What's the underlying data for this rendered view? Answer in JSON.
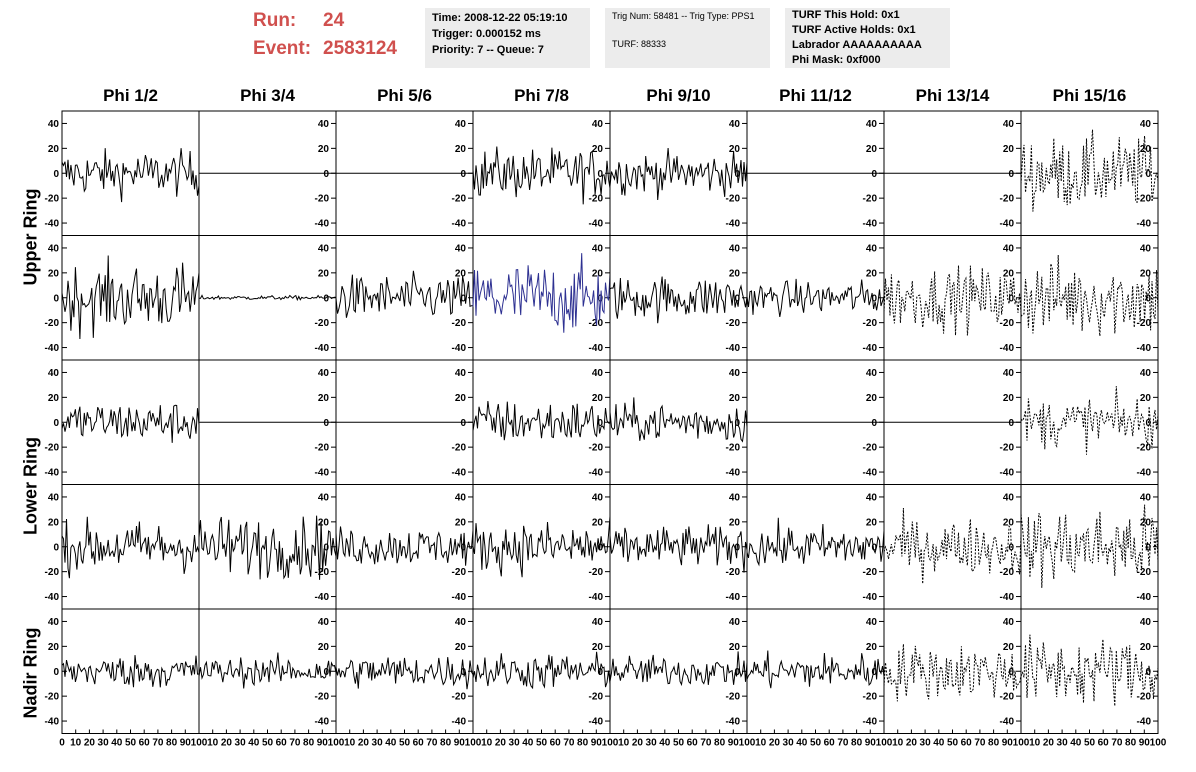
{
  "header": {
    "run_label": "Run:",
    "run_value": "24",
    "event_label": "Event:",
    "event_value": "2583124",
    "box1": [
      "Time: 2008-12-22 05:19:10",
      "Trigger: 0.000152 ms",
      "Priority: 7 -- Queue: 7"
    ],
    "box2": [
      "Trig Num: 58481 -- Trig Type: PPS1",
      "TURF: 88333"
    ],
    "box3": [
      "TURF This Hold: 0x1",
      "TURF Active Holds: 0x1",
      "Labrador AAAAAAAAAA",
      "Phi Mask: 0xf000"
    ]
  },
  "columns": [
    "Phi 1/2",
    "Phi 3/4",
    "Phi 5/6",
    "Phi 7/8",
    "Phi 9/10",
    "Phi 11/12",
    "Phi 13/14",
    "Phi 15/16"
  ],
  "rows": [
    "Upper Ring",
    "Lower Ring",
    "Nadir Ring"
  ],
  "chart_data": {
    "type": "line",
    "xlim": [
      0,
      100
    ],
    "ylim": [
      -50,
      50
    ],
    "y_ticks": [
      -40,
      -20,
      0,
      20,
      40
    ],
    "x_tick_labels_first": [
      "0",
      "10",
      "20",
      "30",
      "40",
      "50",
      "60",
      "70",
      "80",
      "90",
      "100"
    ],
    "x_tick_labels_other": [
      "10",
      "20",
      "30",
      "40",
      "50",
      "60",
      "70",
      "80",
      "90",
      "100"
    ],
    "colors": {
      "default": "#000000",
      "highlight": "#2e3192"
    },
    "panels": [
      [
        {
          "amp": 16,
          "style": "solid",
          "color": "#000000"
        },
        {
          "amp": 0,
          "style": "solid",
          "color": "#000000"
        },
        {
          "amp": 0,
          "style": "solid",
          "color": "#000000"
        },
        {
          "amp": 18,
          "style": "solid",
          "color": "#000000"
        },
        {
          "amp": 15,
          "style": "solid",
          "color": "#000000"
        },
        {
          "amp": 0,
          "style": "solid",
          "color": "#000000"
        },
        {
          "amp": 0,
          "style": "solid",
          "color": "#000000"
        },
        {
          "amp": 26,
          "style": "dashed",
          "color": "#000000"
        }
      ],
      [
        {
          "amp": 24,
          "style": "solid",
          "color": "#000000"
        },
        {
          "amp": 1.5,
          "style": "solid",
          "color": "#000000"
        },
        {
          "amp": 16,
          "style": "solid",
          "color": "#000000"
        },
        {
          "amp": 26,
          "style": "solid",
          "color": "#2e3192"
        },
        {
          "amp": 16,
          "style": "solid",
          "color": "#000000"
        },
        {
          "amp": 12,
          "style": "solid",
          "color": "#000000"
        },
        {
          "amp": 22,
          "style": "dashed",
          "color": "#000000"
        },
        {
          "amp": 28,
          "style": "dashed",
          "color": "#000000"
        }
      ],
      [
        {
          "amp": 15,
          "style": "solid",
          "color": "#000000"
        },
        {
          "amp": 0,
          "style": "solid",
          "color": "#000000"
        },
        {
          "amp": 0,
          "style": "solid",
          "color": "#000000"
        },
        {
          "amp": 16,
          "style": "solid",
          "color": "#000000"
        },
        {
          "amp": 14,
          "style": "solid",
          "color": "#000000"
        },
        {
          "amp": 0,
          "style": "solid",
          "color": "#000000"
        },
        {
          "amp": 0,
          "style": "solid",
          "color": "#000000"
        },
        {
          "amp": 18,
          "style": "dashed",
          "color": "#000000"
        }
      ],
      [
        {
          "amp": 18,
          "style": "solid",
          "color": "#000000"
        },
        {
          "amp": 22,
          "style": "solid",
          "color": "#000000"
        },
        {
          "amp": 14,
          "style": "solid",
          "color": "#000000"
        },
        {
          "amp": 18,
          "style": "solid",
          "color": "#000000"
        },
        {
          "amp": 15,
          "style": "solid",
          "color": "#000000"
        },
        {
          "amp": 15,
          "style": "solid",
          "color": "#000000"
        },
        {
          "amp": 20,
          "style": "dashed",
          "color": "#000000"
        },
        {
          "amp": 28,
          "style": "dashed",
          "color": "#000000"
        }
      ],
      [
        {
          "amp": 12,
          "style": "solid",
          "color": "#000000"
        },
        {
          "amp": 10,
          "style": "solid",
          "color": "#000000"
        },
        {
          "amp": 12,
          "style": "solid",
          "color": "#000000"
        },
        {
          "amp": 13,
          "style": "solid",
          "color": "#000000"
        },
        {
          "amp": 11,
          "style": "solid",
          "color": "#000000"
        },
        {
          "amp": 13,
          "style": "solid",
          "color": "#000000"
        },
        {
          "amp": 20,
          "style": "dashed",
          "color": "#000000"
        },
        {
          "amp": 24,
          "style": "dashed",
          "color": "#000000"
        }
      ]
    ]
  }
}
